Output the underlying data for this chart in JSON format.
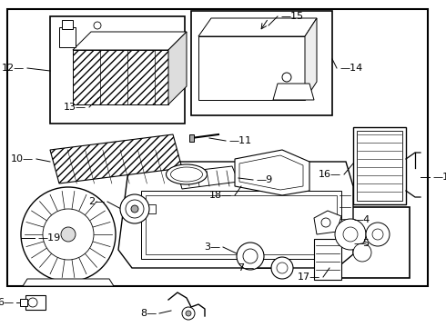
{
  "bg_color": "#ffffff",
  "line_color": "#000000",
  "text_color": "#000000",
  "fig_width": 4.9,
  "fig_height": 3.6,
  "dpi": 100
}
